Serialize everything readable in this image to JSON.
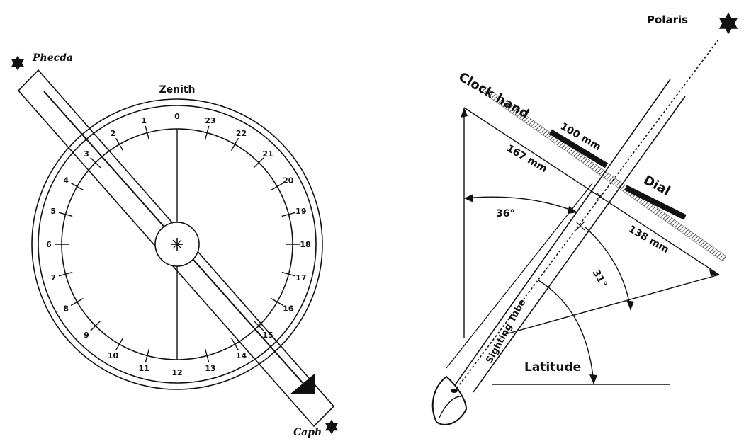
{
  "colors": {
    "ink": "#111111",
    "hatch": "#8a8a8a",
    "paper": "#ffffff"
  },
  "star_chart": {
    "zenith_label": "Zenith",
    "hour_numbers": [
      "0",
      "1",
      "2",
      "3",
      "4",
      "5",
      "6",
      "7",
      "8",
      "9",
      "10",
      "11",
      "12",
      "13",
      "14",
      "15",
      "16",
      "17",
      "18",
      "19",
      "20",
      "21",
      "22",
      "23"
    ],
    "star_top": "Phecda",
    "star_bottom": "Caph",
    "icons": [
      "star-icon",
      "arrowhead-icon"
    ]
  },
  "geometry_diagram": {
    "polaris_label": "Polaris",
    "clock_hand_label": "Clock hand",
    "dial_label": "Dial",
    "sighting_tube_label": "Sighting Tube",
    "latitude_label": "Latitude",
    "dim_100": "100 mm",
    "dim_167": "167 mm",
    "dim_138": "138 mm",
    "angle_36": "36°",
    "angle_31": "31°",
    "icons": [
      "star-icon",
      "eye-icon"
    ]
  }
}
